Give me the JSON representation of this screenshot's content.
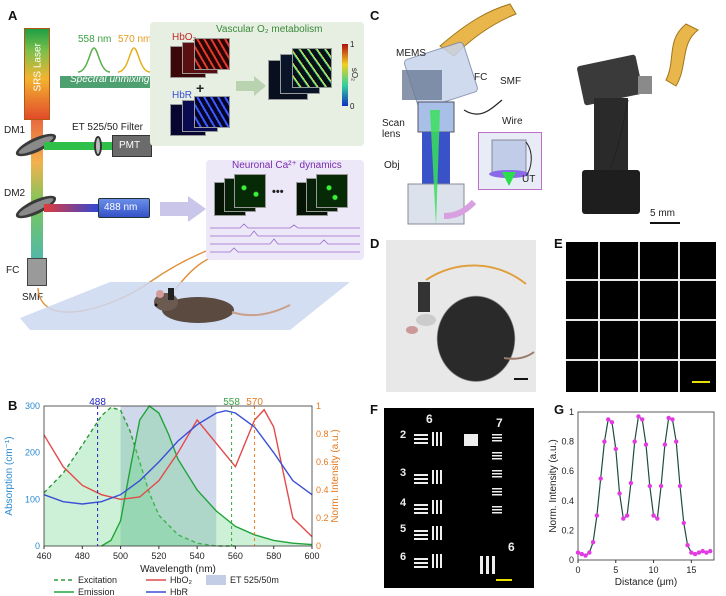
{
  "panels": {
    "a": "A",
    "b": "B",
    "c": "C",
    "d": "D",
    "e": "E",
    "f": "F",
    "g": "G"
  },
  "panel_a": {
    "laser": "SRS Laser",
    "dm1": "DM1",
    "dm2": "DM2",
    "fc": "FC",
    "smf": "SMF",
    "filter": "ET 525/50 Filter",
    "pmt": "PMT",
    "wl1": "558 nm",
    "wl2": "570 nm",
    "unmixing": "Spectral unmixing",
    "hbo2": "HbO₂",
    "hbr": "HbR",
    "vascular_title": "Vascular O₂  metabolism",
    "so2_label": "sO₂",
    "so2_max": "1",
    "so2_min": "0",
    "plus": "+",
    "laser488": "488 nm",
    "ellipsis": "•••",
    "neuronal_title": "Neuronal Ca²⁺ dynamics"
  },
  "panel_c": {
    "mems": "MEMS",
    "fc": "FC",
    "smf": "SMF",
    "wire": "Wire",
    "scan_lens": "Scan lens",
    "obj": "Obj",
    "ut": "UT",
    "scale": "5 mm"
  },
  "panel_f": {
    "g6": "6",
    "g7": "7",
    "g6b": "6",
    "e2": "2",
    "e3": "3",
    "e4": "4",
    "e5": "5",
    "e6": "6"
  },
  "chart_b": {
    "type": "line",
    "xlabel": "Wavelength (nm)",
    "ylabel_left": "Absorption (cm⁻¹)",
    "ylabel_right": "Norm. Intensity (a.u.)",
    "xlim": [
      460,
      600
    ],
    "ylim_left": [
      0,
      300
    ],
    "ylim_right": [
      0,
      1.0
    ],
    "xticks": [
      460,
      480,
      500,
      520,
      540,
      560,
      580,
      600
    ],
    "yticks_left": [
      0,
      100,
      200,
      300
    ],
    "yticks_right": [
      0,
      0.2,
      0.4,
      0.6,
      0.8,
      1
    ],
    "markers": [
      {
        "x": 488,
        "label": "488",
        "color": "#1f22c4"
      },
      {
        "x": 558,
        "label": "558",
        "color": "#3aa040"
      },
      {
        "x": 570,
        "label": "570",
        "color": "#e57a1d"
      }
    ],
    "band": {
      "from": 500,
      "to": 550,
      "label": "ET 525/50m",
      "color": "#a9b8dc"
    },
    "series": [
      {
        "name": "Excitation",
        "axis": "right",
        "style": "dashed",
        "color": "#2e9a3a",
        "x": [
          460,
          470,
          480,
          490,
          495,
          500,
          505,
          510,
          515,
          520,
          530,
          540,
          550,
          560
        ],
        "y": [
          0.38,
          0.52,
          0.72,
          0.93,
          0.99,
          0.97,
          0.82,
          0.6,
          0.38,
          0.22,
          0.08,
          0.02,
          0.0,
          0.0
        ]
      },
      {
        "name": "Emission",
        "axis": "right",
        "style": "solid",
        "color": "#21a33a",
        "x": [
          490,
          495,
          500,
          505,
          510,
          515,
          520,
          525,
          530,
          540,
          550,
          560,
          570,
          580,
          590,
          600
        ],
        "y": [
          0.0,
          0.04,
          0.18,
          0.55,
          0.9,
          1.0,
          0.95,
          0.8,
          0.62,
          0.4,
          0.25,
          0.14,
          0.08,
          0.04,
          0.02,
          0.01
        ]
      },
      {
        "name": "HbO₂",
        "axis": "left",
        "style": "solid",
        "color": "#e24a4a",
        "x": [
          460,
          470,
          480,
          490,
          500,
          510,
          520,
          530,
          540,
          550,
          560,
          570,
          575,
          580,
          590,
          600
        ],
        "y": [
          238,
          170,
          130,
          110,
          100,
          105,
          140,
          200,
          270,
          220,
          170,
          270,
          292,
          255,
          60,
          20
        ]
      },
      {
        "name": "HbR",
        "axis": "left",
        "style": "solid",
        "color": "#3a4fd6",
        "x": [
          460,
          470,
          480,
          490,
          500,
          510,
          520,
          530,
          540,
          550,
          555,
          560,
          570,
          580,
          590,
          600
        ],
        "y": [
          110,
          95,
          90,
          95,
          110,
          140,
          180,
          225,
          260,
          285,
          290,
          285,
          255,
          200,
          140,
          110
        ]
      }
    ],
    "legend": {
      "excitation": "Excitation",
      "emission": "Emission",
      "hbo2": "HbO₂",
      "hbr": "HbR",
      "band": "ET 525/50m"
    }
  },
  "chart_g": {
    "type": "line",
    "xlabel": "Distance (μm)",
    "ylabel": "Norm. Intensity (a.u.)",
    "xlim": [
      0,
      18
    ],
    "ylim": [
      0,
      1.0
    ],
    "xticks": [
      0,
      5,
      10,
      15
    ],
    "yticks": [
      0,
      0.2,
      0.4,
      0.6,
      0.8,
      1
    ],
    "series": [
      {
        "name": "profile",
        "color": "#e23ae2",
        "line": "#1d4d40",
        "x": [
          0,
          0.5,
          1,
          1.5,
          2,
          2.5,
          3,
          3.5,
          4,
          4.5,
          5,
          5.5,
          6,
          6.5,
          7,
          7.5,
          8,
          8.5,
          9,
          9.5,
          10,
          10.5,
          11,
          11.5,
          12,
          12.5,
          13,
          13.5,
          14,
          14.5,
          15,
          15.5,
          16,
          16.5,
          17,
          17.5
        ],
        "y": [
          0.05,
          0.04,
          0.03,
          0.05,
          0.12,
          0.3,
          0.55,
          0.8,
          0.95,
          0.93,
          0.75,
          0.45,
          0.28,
          0.3,
          0.52,
          0.8,
          0.97,
          0.95,
          0.78,
          0.5,
          0.3,
          0.28,
          0.5,
          0.78,
          0.96,
          0.95,
          0.8,
          0.5,
          0.25,
          0.1,
          0.05,
          0.04,
          0.05,
          0.06,
          0.05,
          0.06
        ]
      }
    ]
  }
}
